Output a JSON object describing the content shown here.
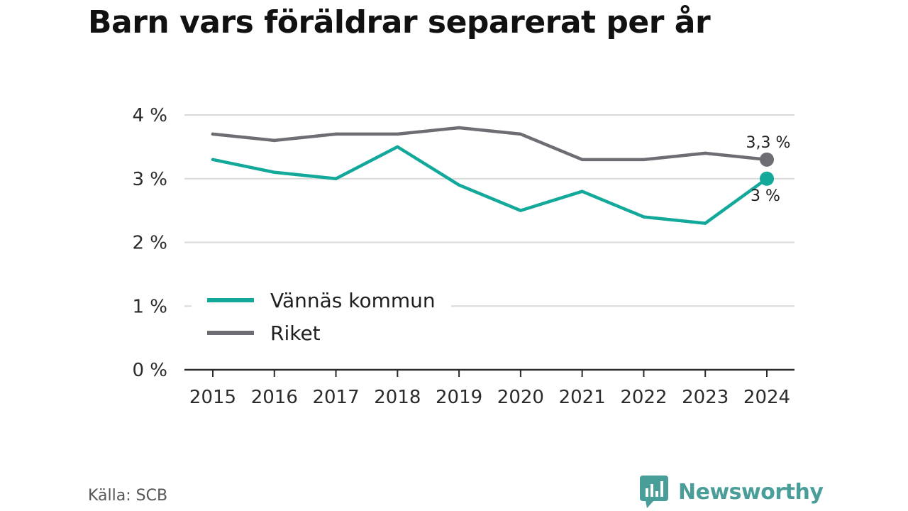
{
  "title": "Barn vars föräldrar separerat per år",
  "source": "Källa: SCB",
  "brand": {
    "name": "Newsworthy",
    "icon": "newsworthy-logo-icon",
    "color": "#4a9e99"
  },
  "chart_data": {
    "type": "line",
    "title": "Barn vars föräldrar separerat per år",
    "xlabel": "",
    "ylabel": "",
    "x": [
      "2015",
      "2016",
      "2017",
      "2018",
      "2019",
      "2020",
      "2021",
      "2022",
      "2023",
      "2024"
    ],
    "ylim": [
      0,
      4
    ],
    "yticks": [
      0,
      1,
      2,
      3,
      4
    ],
    "ytick_labels": [
      "0 %",
      "1 %",
      "2 %",
      "3 %",
      "4 %"
    ],
    "grid": true,
    "legend_position": "bottom-left",
    "series": [
      {
        "name": "Vännäs kommun",
        "color": "#12a89a",
        "values": [
          3.3,
          3.1,
          3.0,
          3.5,
          2.9,
          2.5,
          2.8,
          2.4,
          2.3,
          3.0
        ],
        "end_label": "3 %"
      },
      {
        "name": "Riket",
        "color": "#6e6d73",
        "values": [
          3.7,
          3.6,
          3.7,
          3.7,
          3.8,
          3.7,
          3.3,
          3.3,
          3.4,
          3.3
        ],
        "end_label": "3,3 %"
      }
    ]
  }
}
